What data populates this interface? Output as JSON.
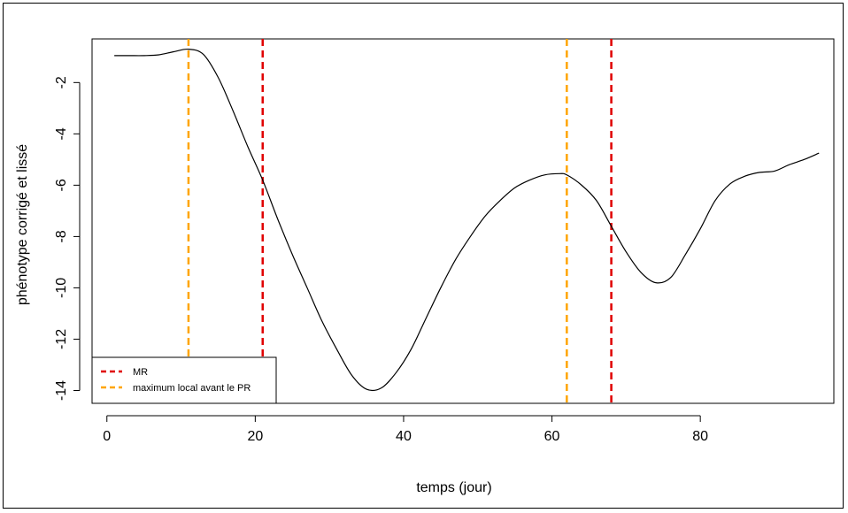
{
  "chart_data": {
    "type": "line",
    "xlabel": "temps (jour)",
    "ylabel": "phénotype corrigé et lissé",
    "xlim": [
      -2,
      98
    ],
    "ylim": [
      -14.5,
      -0.3
    ],
    "x_ticks": [
      0,
      20,
      40,
      60,
      80
    ],
    "y_ticks": [
      -14,
      -12,
      -10,
      -8,
      -6,
      -4,
      -2
    ],
    "x_tick_labels": [
      "0",
      "20",
      "40",
      "60",
      "80"
    ],
    "y_tick_labels": [
      "-14",
      "-12",
      "-10",
      "-8",
      "-6",
      "-4",
      "-2"
    ],
    "series": [
      {
        "color": "#000000",
        "x": [
          1,
          3,
          5,
          7,
          9,
          11,
          13,
          15,
          17,
          19,
          21,
          23,
          25,
          27,
          29,
          31,
          33,
          35,
          37,
          39,
          41,
          43,
          45,
          47,
          49,
          51,
          53,
          55,
          57,
          59,
          61,
          62,
          64,
          66,
          68,
          70,
          72,
          74,
          76,
          78,
          80,
          82,
          84,
          86,
          88,
          90,
          92,
          94,
          96
        ],
        "y": [
          -0.95,
          -0.95,
          -0.95,
          -0.92,
          -0.8,
          -0.7,
          -0.9,
          -1.8,
          -3.1,
          -4.5,
          -5.8,
          -7.3,
          -8.7,
          -10.0,
          -11.3,
          -12.4,
          -13.4,
          -13.95,
          -13.9,
          -13.3,
          -12.4,
          -11.2,
          -10.0,
          -8.9,
          -8.0,
          -7.2,
          -6.6,
          -6.1,
          -5.8,
          -5.6,
          -5.55,
          -5.6,
          -6.0,
          -6.6,
          -7.6,
          -8.6,
          -9.4,
          -9.8,
          -9.6,
          -8.7,
          -7.7,
          -6.6,
          -5.95,
          -5.65,
          -5.5,
          -5.45,
          -5.2,
          -5.0,
          -4.75
        ]
      }
    ],
    "vlines": [
      {
        "x": 11,
        "color": "#FFA500",
        "style": "dashed"
      },
      {
        "x": 21,
        "color": "#E00000",
        "style": "dashed"
      },
      {
        "x": 62,
        "color": "#FFA500",
        "style": "dashed"
      },
      {
        "x": 68,
        "color": "#E00000",
        "style": "dashed"
      }
    ],
    "legend": {
      "placement": "bottom-left",
      "entries": [
        {
          "label": "MR",
          "color": "#E00000",
          "style": "dashed"
        },
        {
          "label": "maximum local avant le PR",
          "color": "#FFA500",
          "style": "dashed"
        }
      ]
    },
    "grid": false
  }
}
